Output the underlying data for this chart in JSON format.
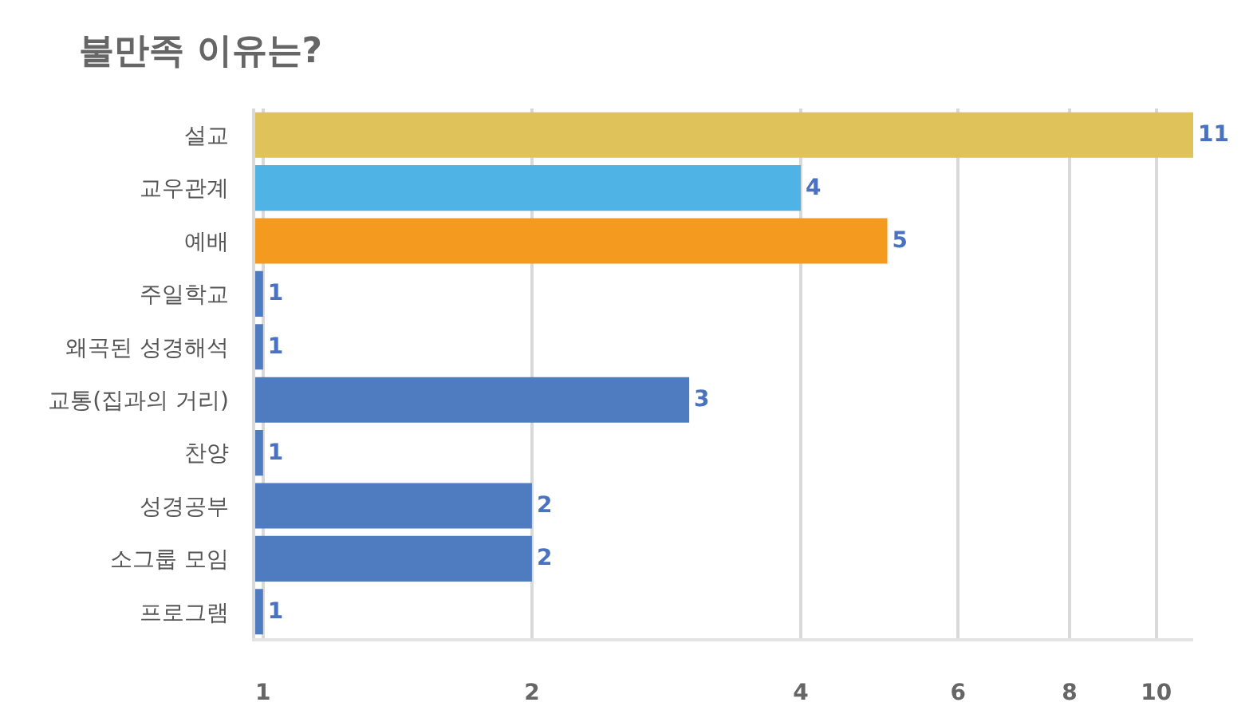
{
  "chart_data": {
    "type": "bar",
    "orientation": "horizontal",
    "title": "불만족 이유는?",
    "categories": [
      "설교",
      "교우관계",
      "예배",
      "주일학교",
      "왜곡된 성경해석",
      "교통(집과의 거리)",
      "찬양",
      "성경공부",
      "소그룹 모임",
      "프로그램"
    ],
    "values": [
      11,
      4,
      5,
      1,
      1,
      3,
      1,
      2,
      2,
      1
    ],
    "colors": [
      "#dfc35a",
      "#4fb3e6",
      "#f49a1f",
      "#4f7cc0",
      "#4f7cc0",
      "#4f7cc0",
      "#4f7cc0",
      "#4f7cc0",
      "#4f7cc0",
      "#4f7cc0"
    ],
    "log": "x",
    "xlim": [
      0.98,
      11
    ],
    "xticks": [
      1,
      2,
      4,
      6,
      8,
      10
    ],
    "grid": "x",
    "data_labels": true
  }
}
